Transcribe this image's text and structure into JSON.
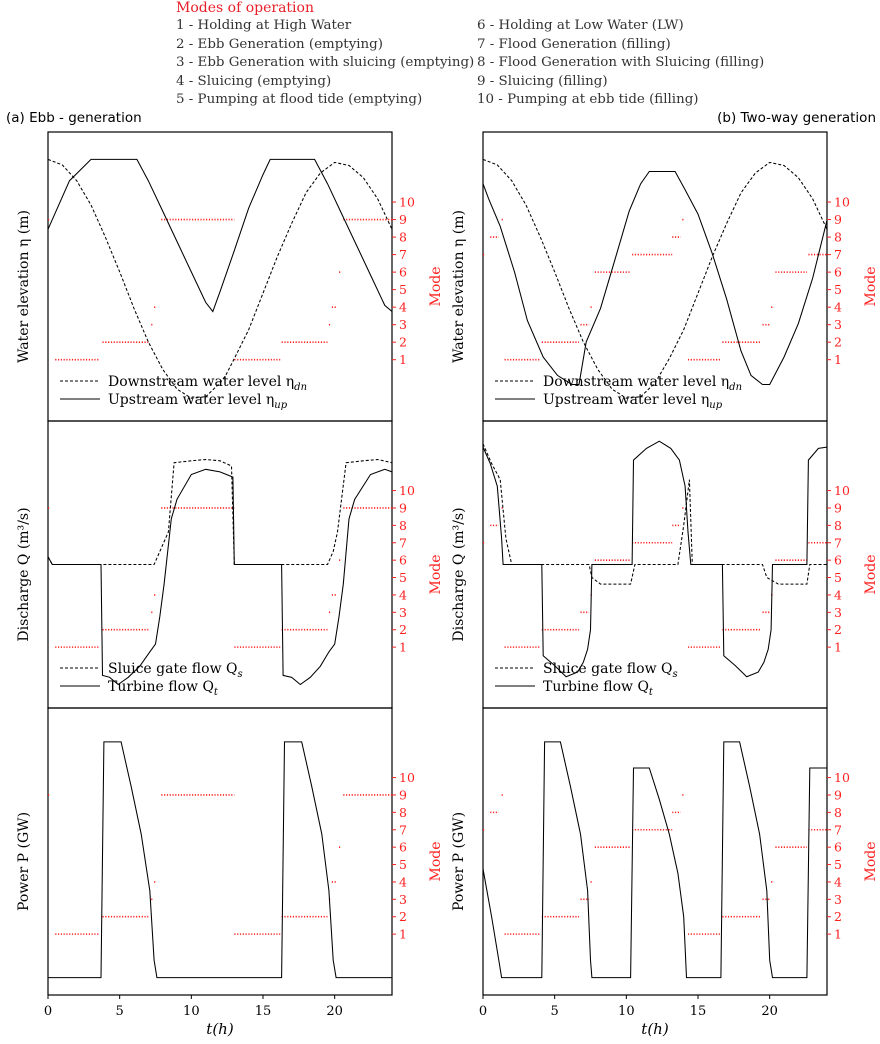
{
  "modes": {
    "title": "Modes of operation",
    "left": [
      "1 - Holding at High Water",
      "2 - Ebb Generation (emptying)",
      "3 - Ebb Generation with sluicing (emptying)",
      "4 - Sluicing (emptying)",
      "5 - Pumping at flood tide (emptying)"
    ],
    "right": [
      "6 - Holding at Low Water (LW)",
      "7 - Flood Generation (filling)",
      "8 - Flood Generation with Sluicing (filling)",
      "9 - Sluicing (filling)",
      "10 - Pumping at ebb tide (filling)"
    ]
  },
  "panels": [
    {
      "id": "a",
      "title": "(a) Ebb - generation"
    },
    {
      "id": "b",
      "title": "(b) Two-way generation"
    }
  ],
  "colors": {
    "mode": "#ff2020",
    "line": "#000000",
    "text": "#000000"
  },
  "chart_data": {
    "type": "line",
    "xlabel": "t(h)",
    "xlim": [
      0,
      24
    ],
    "xticks": [
      0,
      5,
      10,
      15,
      20
    ],
    "mode_axis": {
      "label": "Mode",
      "ticks": [
        1,
        2,
        3,
        4,
        5,
        6,
        7,
        8,
        9,
        10
      ],
      "ylim": [
        -2.5,
        14
      ]
    },
    "rows": [
      {
        "ylabel": "Water elevation η (m)",
        "ylim": [
          -4.6,
          4.9
        ],
        "legend": [
          {
            "style": "dashed",
            "label": "Downstream water level η",
            "sub": "dn"
          },
          {
            "style": "solid",
            "label": "Upstream water level η",
            "sub": "up"
          }
        ]
      },
      {
        "ylabel": "Discharge Q (m³/s)",
        "ylim": [
          -22,
          22
        ],
        "legend": [
          {
            "style": "dashed",
            "label": "Sluice gate flow Q",
            "sub": "s"
          },
          {
            "style": "solid",
            "label": "Turbine flow Q",
            "sub": "t"
          }
        ]
      },
      {
        "ylabel": "Power P (GW)",
        "ylim": [
          -0.3,
          3.0
        ],
        "legend": []
      }
    ],
    "ebb": {
      "downstream": [
        [
          0,
          4.0
        ],
        [
          1,
          3.82
        ],
        [
          2,
          3.3
        ],
        [
          3,
          2.5
        ],
        [
          4,
          1.45
        ],
        [
          5,
          0.3
        ],
        [
          6,
          -0.9
        ],
        [
          7,
          -2.0
        ],
        [
          8,
          -2.9
        ],
        [
          9,
          -3.55
        ],
        [
          10,
          -3.85
        ],
        [
          11,
          -3.8
        ],
        [
          12,
          -3.35
        ],
        [
          12.4,
          -3.1
        ],
        [
          13,
          -2.55
        ],
        [
          14,
          -1.6
        ],
        [
          15,
          -0.4
        ],
        [
          16,
          0.8
        ],
        [
          17,
          1.9
        ],
        [
          18,
          2.9
        ],
        [
          19,
          3.55
        ],
        [
          20,
          3.9
        ],
        [
          21,
          3.8
        ],
        [
          22,
          3.4
        ],
        [
          23,
          2.7
        ],
        [
          24,
          1.7
        ]
      ],
      "upstream": [
        [
          0,
          1.7
        ],
        [
          1.5,
          3.3
        ],
        [
          3,
          4.0
        ],
        [
          6.2,
          4.0
        ],
        [
          7,
          3.3
        ],
        [
          8,
          2.3
        ],
        [
          9,
          1.3
        ],
        [
          10,
          0.3
        ],
        [
          11,
          -0.7
        ],
        [
          11.5,
          -1.0
        ],
        [
          12,
          -0.35
        ],
        [
          13,
          1.0
        ],
        [
          14,
          2.4
        ],
        [
          15,
          3.5
        ],
        [
          15.5,
          4.0
        ],
        [
          18.6,
          4.0
        ],
        [
          19.5,
          3.2
        ],
        [
          20.5,
          2.2
        ],
        [
          21.5,
          1.2
        ],
        [
          22.5,
          0.2
        ],
        [
          23.5,
          -0.8
        ],
        [
          24,
          -1.0
        ]
      ],
      "sluice": [
        [
          0,
          1.2
        ],
        [
          0.3,
          0.0
        ],
        [
          7.4,
          0.0
        ],
        [
          7.8,
          2.0
        ],
        [
          8.4,
          5.0
        ],
        [
          8.8,
          15.6
        ],
        [
          10,
          15.9
        ],
        [
          11,
          16.1
        ],
        [
          12,
          15.9
        ],
        [
          12.8,
          15.1
        ],
        [
          13,
          0.0
        ],
        [
          19.5,
          0.0
        ],
        [
          19.9,
          2.0
        ],
        [
          20.2,
          5.0
        ],
        [
          20.8,
          15.6
        ],
        [
          22,
          15.9
        ],
        [
          23,
          16.1
        ],
        [
          24,
          15.6
        ]
      ],
      "turbine": [
        [
          0,
          1.2
        ],
        [
          0.3,
          0.0
        ],
        [
          3.7,
          0.0
        ],
        [
          3.8,
          -17.0
        ],
        [
          4.3,
          -17.3
        ],
        [
          4.9,
          -18.4
        ],
        [
          5.6,
          -17.3
        ],
        [
          6.4,
          -15.6
        ],
        [
          7.1,
          -13.4
        ],
        [
          7.5,
          -12.2
        ],
        [
          7.8,
          -8.0
        ],
        [
          8.1,
          -3.0
        ],
        [
          8.6,
          7.0
        ],
        [
          9,
          10.0
        ],
        [
          10,
          13.8
        ],
        [
          11,
          14.6
        ],
        [
          12,
          14.2
        ],
        [
          12.9,
          13.4
        ],
        [
          13,
          0.0
        ],
        [
          16.3,
          0.0
        ],
        [
          16.4,
          -17.0
        ],
        [
          17,
          -17.3
        ],
        [
          17.6,
          -18.4
        ],
        [
          18.3,
          -17.3
        ],
        [
          19,
          -15.6
        ],
        [
          19.6,
          -13.4
        ],
        [
          20.0,
          -12.2
        ],
        [
          20.3,
          -8.0
        ],
        [
          20.6,
          -3.0
        ],
        [
          21,
          7.0
        ],
        [
          21.4,
          10.0
        ],
        [
          22.5,
          13.8
        ],
        [
          23.5,
          14.6
        ],
        [
          24,
          14.2
        ]
      ],
      "power": [
        [
          0,
          -0.1
        ],
        [
          3.7,
          -0.1
        ],
        [
          3.9,
          2.61
        ],
        [
          5.1,
          2.61
        ],
        [
          5.8,
          2.1
        ],
        [
          6.5,
          1.55
        ],
        [
          7.1,
          0.9
        ],
        [
          7.4,
          0.1
        ],
        [
          7.6,
          -0.1
        ],
        [
          16.3,
          -0.1
        ],
        [
          16.5,
          2.61
        ],
        [
          17.7,
          2.61
        ],
        [
          18.4,
          2.1
        ],
        [
          19.1,
          1.55
        ],
        [
          19.6,
          0.9
        ],
        [
          19.9,
          0.1
        ],
        [
          20.1,
          -0.1
        ],
        [
          24,
          -0.1
        ]
      ],
      "modes": [
        [
          0,
          0.1,
          9
        ],
        [
          0.5,
          3.6,
          1
        ],
        [
          3.8,
          7.0,
          2
        ],
        [
          7.2,
          7.3,
          3
        ],
        [
          7.4,
          7.6,
          4
        ],
        [
          7.9,
          13.0,
          9
        ],
        [
          13.0,
          16.2,
          1
        ],
        [
          16.3,
          19.5,
          2
        ],
        [
          19.6,
          19.7,
          3
        ],
        [
          19.8,
          20.1,
          4
        ],
        [
          20.3,
          20.4,
          6
        ],
        [
          20.6,
          24,
          9
        ]
      ]
    },
    "two_way": {
      "downstream": [
        [
          0,
          4.0
        ],
        [
          1,
          3.82
        ],
        [
          2,
          3.3
        ],
        [
          3,
          2.5
        ],
        [
          4,
          1.45
        ],
        [
          5,
          0.3
        ],
        [
          6,
          -0.9
        ],
        [
          7,
          -2.0
        ],
        [
          8,
          -2.9
        ],
        [
          9,
          -3.55
        ],
        [
          10,
          -3.85
        ],
        [
          11,
          -3.8
        ],
        [
          12,
          -3.35
        ],
        [
          13,
          -2.55
        ],
        [
          14,
          -1.6
        ],
        [
          15,
          -0.4
        ],
        [
          16,
          0.8
        ],
        [
          17,
          1.9
        ],
        [
          18,
          2.9
        ],
        [
          19,
          3.55
        ],
        [
          20,
          3.9
        ],
        [
          21,
          3.8
        ],
        [
          22,
          3.4
        ],
        [
          23,
          2.7
        ],
        [
          24,
          1.7
        ]
      ],
      "upstream": [
        [
          0,
          3.2
        ],
        [
          0.4,
          2.7
        ],
        [
          1.2,
          1.8
        ],
        [
          2.2,
          0.3
        ],
        [
          3.1,
          -1.3
        ],
        [
          4.2,
          -2.5
        ],
        [
          5.2,
          -3.1
        ],
        [
          6.2,
          -3.4
        ],
        [
          6.7,
          -3.4
        ],
        [
          7.2,
          -2.0
        ],
        [
          8.2,
          -0.9
        ],
        [
          9.2,
          0.7
        ],
        [
          10.2,
          2.3
        ],
        [
          11,
          3.2
        ],
        [
          11.6,
          3.6
        ],
        [
          13.4,
          3.6
        ],
        [
          14.1,
          3.0
        ],
        [
          15,
          2.2
        ],
        [
          16,
          0.9
        ],
        [
          17,
          -0.6
        ],
        [
          18,
          -2.3
        ],
        [
          18.7,
          -3.1
        ],
        [
          19.5,
          -3.4
        ],
        [
          20,
          -3.4
        ],
        [
          21,
          -2.5
        ],
        [
          22,
          -1.4
        ],
        [
          23,
          0.1
        ],
        [
          24,
          2.0
        ]
      ],
      "sluice": [
        [
          0,
          18.5
        ],
        [
          0.6,
          15.5
        ],
        [
          1.2,
          13.0
        ],
        [
          1.6,
          4.0
        ],
        [
          2.0,
          0.0
        ],
        [
          7.4,
          0.0
        ],
        [
          7.6,
          -2.0
        ],
        [
          8.2,
          -3.0
        ],
        [
          10.3,
          -3.0
        ],
        [
          10.6,
          0.0
        ],
        [
          13.6,
          0.0
        ],
        [
          14.0,
          6.0
        ],
        [
          14.4,
          13.0
        ],
        [
          14.6,
          0.0
        ],
        [
          19.5,
          0.0
        ],
        [
          19.8,
          -2.0
        ],
        [
          20.6,
          -3.0
        ],
        [
          22.6,
          -3.0
        ],
        [
          22.8,
          0.0
        ],
        [
          24,
          0.0
        ]
      ],
      "turbine": [
        [
          0,
          18.0
        ],
        [
          0.5,
          15.5
        ],
        [
          1.0,
          12.0
        ],
        [
          1.3,
          4.0
        ],
        [
          1.4,
          0.0
        ],
        [
          4.1,
          0.0
        ],
        [
          4.2,
          -14.0
        ],
        [
          5.0,
          -15.5
        ],
        [
          5.8,
          -17.2
        ],
        [
          6.6,
          -16.5
        ],
        [
          7.0,
          -15.0
        ],
        [
          7.3,
          -13.0
        ],
        [
          7.5,
          -10.0
        ],
        [
          7.6,
          0.0
        ],
        [
          10.4,
          0.0
        ],
        [
          10.5,
          16.0
        ],
        [
          11.4,
          17.8
        ],
        [
          12.3,
          18.9
        ],
        [
          13.1,
          17.8
        ],
        [
          13.7,
          16.0
        ],
        [
          14.1,
          12.0
        ],
        [
          14.3,
          5.0
        ],
        [
          14.5,
          0.0
        ],
        [
          16.7,
          0.0
        ],
        [
          16.8,
          -14.0
        ],
        [
          17.6,
          -15.5
        ],
        [
          18.4,
          -17.2
        ],
        [
          19.2,
          -16.5
        ],
        [
          19.6,
          -15.0
        ],
        [
          19.9,
          -13.0
        ],
        [
          20.1,
          -10.0
        ],
        [
          20.2,
          0.0
        ],
        [
          22.6,
          0.0
        ],
        [
          22.7,
          16.0
        ],
        [
          23.4,
          17.8
        ],
        [
          24,
          18.0
        ]
      ],
      "power": [
        [
          0,
          1.15
        ],
        [
          0.6,
          0.6
        ],
        [
          1.1,
          0.1
        ],
        [
          1.3,
          -0.1
        ],
        [
          4.1,
          -0.1
        ],
        [
          4.3,
          2.61
        ],
        [
          5.4,
          2.61
        ],
        [
          6.1,
          2.1
        ],
        [
          6.8,
          1.55
        ],
        [
          7.3,
          0.9
        ],
        [
          7.5,
          0.1
        ],
        [
          7.6,
          -0.1
        ],
        [
          10.3,
          -0.1
        ],
        [
          10.5,
          2.31
        ],
        [
          11.6,
          2.31
        ],
        [
          12.3,
          1.95
        ],
        [
          13.0,
          1.55
        ],
        [
          13.6,
          1.1
        ],
        [
          14.0,
          0.6
        ],
        [
          14.2,
          -0.1
        ],
        [
          16.6,
          -0.1
        ],
        [
          16.8,
          2.61
        ],
        [
          17.9,
          2.61
        ],
        [
          18.6,
          2.1
        ],
        [
          19.3,
          1.55
        ],
        [
          19.8,
          0.9
        ],
        [
          20.0,
          0.1
        ],
        [
          20.2,
          -0.1
        ],
        [
          22.6,
          -0.1
        ],
        [
          22.8,
          2.31
        ],
        [
          24,
          2.31
        ]
      ],
      "modes": [
        [
          0,
          0.1,
          7
        ],
        [
          0.5,
          1.1,
          8
        ],
        [
          1.3,
          1.4,
          9
        ],
        [
          1.5,
          4.0,
          1
        ],
        [
          4.1,
          6.7,
          2
        ],
        [
          6.8,
          7.4,
          3
        ],
        [
          7.5,
          7.6,
          4
        ],
        [
          7.8,
          10.3,
          6
        ],
        [
          10.4,
          13.2,
          7
        ],
        [
          13.2,
          13.8,
          8
        ],
        [
          13.9,
          14.0,
          9
        ],
        [
          14.3,
          16.6,
          1
        ],
        [
          16.7,
          19.4,
          2
        ],
        [
          19.5,
          20.0,
          3
        ],
        [
          20.1,
          20.3,
          4
        ],
        [
          20.4,
          22.6,
          6
        ],
        [
          22.7,
          24,
          7
        ]
      ]
    }
  }
}
